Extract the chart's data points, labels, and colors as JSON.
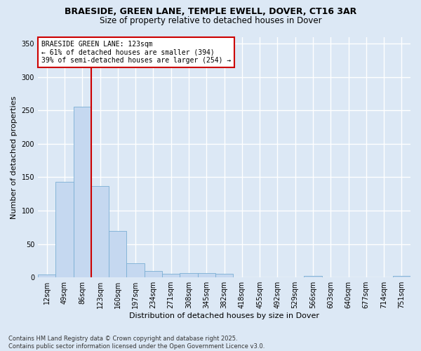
{
  "title_line1": "BRAESIDE, GREEN LANE, TEMPLE EWELL, DOVER, CT16 3AR",
  "title_line2": "Size of property relative to detached houses in Dover",
  "xlabel": "Distribution of detached houses by size in Dover",
  "ylabel": "Number of detached properties",
  "categories": [
    "12sqm",
    "49sqm",
    "86sqm",
    "123sqm",
    "160sqm",
    "197sqm",
    "234sqm",
    "271sqm",
    "308sqm",
    "345sqm",
    "382sqm",
    "418sqm",
    "455sqm",
    "492sqm",
    "529sqm",
    "566sqm",
    "603sqm",
    "640sqm",
    "677sqm",
    "714sqm",
    "751sqm"
  ],
  "values": [
    4,
    143,
    255,
    137,
    70,
    21,
    10,
    5,
    6,
    6,
    5,
    0,
    0,
    0,
    0,
    2,
    0,
    0,
    0,
    0,
    2
  ],
  "bar_color": "#c5d8f0",
  "bar_edge_color": "#7aafd4",
  "vline_x_index": 3,
  "vline_color": "#cc0000",
  "annotation_title": "BRAESIDE GREEN LANE: 123sqm",
  "annotation_line2": "← 61% of detached houses are smaller (394)",
  "annotation_line3": "39% of semi-detached houses are larger (254) →",
  "annotation_box_color": "#cc0000",
  "ylim": [
    0,
    360
  ],
  "yticks": [
    0,
    50,
    100,
    150,
    200,
    250,
    300,
    350
  ],
  "background_color": "#dce8f5",
  "plot_background_color": "#dce8f5",
  "grid_color": "#ffffff",
  "footer_line1": "Contains HM Land Registry data © Crown copyright and database right 2025.",
  "footer_line2": "Contains public sector information licensed under the Open Government Licence v3.0.",
  "title_fontsize": 9,
  "subtitle_fontsize": 8.5,
  "ylabel_fontsize": 8,
  "xlabel_fontsize": 8,
  "tick_fontsize": 7,
  "annotation_fontsize": 7,
  "footer_fontsize": 6
}
